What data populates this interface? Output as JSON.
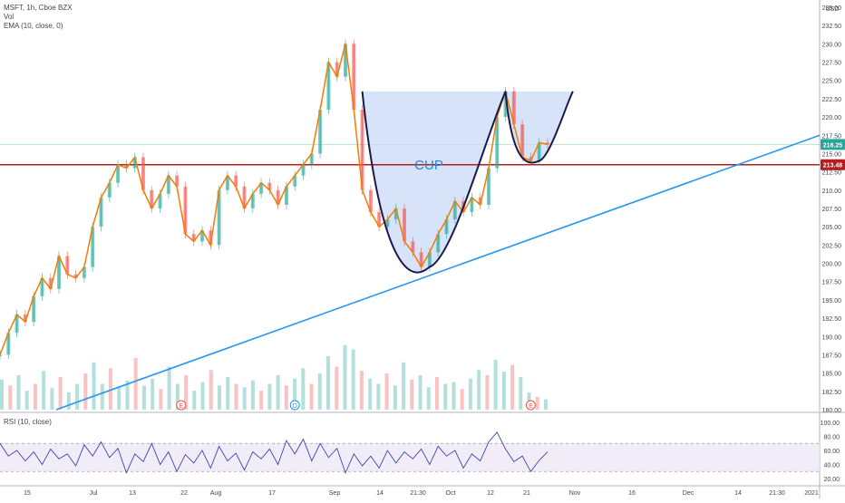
{
  "header": {
    "symbol_line": "MSFT, 1h, Cboe BZX",
    "vol_line": "Vol",
    "ema_line": "EMA (10, close, 0)",
    "rsi_line": "RSI (10, close)"
  },
  "currency_label": "USD",
  "annotations": {
    "cup_label": "CUP"
  },
  "colors": {
    "cup_fill": "#c9daf5",
    "cup_line": "#1a1a4e",
    "trendline": "#2196f3",
    "resistance": "#b71c1c",
    "ema": "#f57c00",
    "up_candle": "#26a69a",
    "down_candle": "#ef5350",
    "rsi_line": "#3949ab",
    "rsi_band": "#ede7f6",
    "price_badge": "#26a69a",
    "level_badge": "#b71c1c"
  },
  "chart_data": {
    "type": "line",
    "title": "",
    "price_axis": {
      "min": 180,
      "max": 235,
      "ticks": [
        "235.00",
        "232.50",
        "230.00",
        "227.50",
        "225.00",
        "222.50",
        "220.00",
        "217.50",
        "215.00",
        "212.50",
        "210.00",
        "207.50",
        "205.00",
        "202.50",
        "200.00",
        "197.50",
        "195.00",
        "192.50",
        "190.00",
        "187.50",
        "185.00",
        "182.50",
        "180.00"
      ]
    },
    "rsi_axis": {
      "min": 20,
      "max": 100,
      "ticks": [
        "100.00",
        "80.00",
        "60.00",
        "40.00",
        "20.00"
      ],
      "band": [
        30,
        70
      ]
    },
    "x_ticks": [
      "15",
      "Jul",
      "13",
      "22",
      "Aug",
      "17",
      "Sep",
      "14",
      "21:30",
      "Oct",
      "12",
      "21",
      "Nov",
      "16",
      "Dec",
      "14",
      "21:30",
      "2021"
    ],
    "price_badges": [
      {
        "label": "216.25",
        "value": 216.25,
        "kind": "last"
      },
      {
        "label": "213.48",
        "value": 213.48,
        "kind": "level"
      }
    ],
    "event_markers": [
      {
        "label": "E",
        "x_index": 21.5
      },
      {
        "label": "D",
        "x_index": 35
      },
      {
        "label": "E",
        "x_index": 63
      }
    ],
    "price_series": [
      {
        "i": 0,
        "v": 187.5
      },
      {
        "i": 1,
        "v": 190.5
      },
      {
        "i": 2,
        "v": 193
      },
      {
        "i": 3,
        "v": 192
      },
      {
        "i": 4,
        "v": 195.5
      },
      {
        "i": 5,
        "v": 198
      },
      {
        "i": 6,
        "v": 196.5
      },
      {
        "i": 7,
        "v": 201
      },
      {
        "i": 8,
        "v": 198.5
      },
      {
        "i": 9,
        "v": 198
      },
      {
        "i": 10,
        "v": 199.5
      },
      {
        "i": 11,
        "v": 205
      },
      {
        "i": 12,
        "v": 209
      },
      {
        "i": 13,
        "v": 211
      },
      {
        "i": 14,
        "v": 213.5
      },
      {
        "i": 15,
        "v": 213
      },
      {
        "i": 16,
        "v": 214.5
      },
      {
        "i": 17,
        "v": 210
      },
      {
        "i": 18,
        "v": 207.5
      },
      {
        "i": 19,
        "v": 209.5
      },
      {
        "i": 20,
        "v": 212
      },
      {
        "i": 21,
        "v": 210.5
      },
      {
        "i": 22,
        "v": 204
      },
      {
        "i": 23,
        "v": 203
      },
      {
        "i": 24,
        "v": 204.5
      },
      {
        "i": 25,
        "v": 202.5
      },
      {
        "i": 26,
        "v": 210
      },
      {
        "i": 27,
        "v": 212
      },
      {
        "i": 28,
        "v": 210.5
      },
      {
        "i": 29,
        "v": 207.5
      },
      {
        "i": 30,
        "v": 209.5
      },
      {
        "i": 31,
        "v": 211
      },
      {
        "i": 32,
        "v": 210
      },
      {
        "i": 33,
        "v": 208
      },
      {
        "i": 34,
        "v": 210.5
      },
      {
        "i": 35,
        "v": 212
      },
      {
        "i": 36,
        "v": 213.5
      },
      {
        "i": 37,
        "v": 215
      },
      {
        "i": 38,
        "v": 221
      },
      {
        "i": 39,
        "v": 227.5
      },
      {
        "i": 40,
        "v": 225.5
      },
      {
        "i": 41,
        "v": 230
      },
      {
        "i": 42,
        "v": 221
      },
      {
        "i": 43,
        "v": 210
      },
      {
        "i": 44,
        "v": 207
      },
      {
        "i": 45,
        "v": 205
      },
      {
        "i": 46,
        "v": 206
      },
      {
        "i": 47,
        "v": 207.5
      },
      {
        "i": 48,
        "v": 203
      },
      {
        "i": 49,
        "v": 201.5
      },
      {
        "i": 50,
        "v": 199.5
      },
      {
        "i": 51,
        "v": 201.5
      },
      {
        "i": 52,
        "v": 204
      },
      {
        "i": 53,
        "v": 206
      },
      {
        "i": 54,
        "v": 208.5
      },
      {
        "i": 55,
        "v": 207
      },
      {
        "i": 56,
        "v": 209
      },
      {
        "i": 57,
        "v": 208
      },
      {
        "i": 58,
        "v": 213
      },
      {
        "i": 59,
        "v": 220
      },
      {
        "i": 60,
        "v": 223.5
      },
      {
        "i": 61,
        "v": 219
      },
      {
        "i": 62,
        "v": 214.5
      },
      {
        "i": 63,
        "v": 214
      },
      {
        "i": 64,
        "v": 216.5
      },
      {
        "i": 65,
        "v": 216.25
      }
    ],
    "rsi_series": [
      {
        "i": 0,
        "v": 70
      },
      {
        "i": 1,
        "v": 52
      },
      {
        "i": 2,
        "v": 60
      },
      {
        "i": 3,
        "v": 45
      },
      {
        "i": 4,
        "v": 58
      },
      {
        "i": 5,
        "v": 40
      },
      {
        "i": 6,
        "v": 62
      },
      {
        "i": 7,
        "v": 48
      },
      {
        "i": 8,
        "v": 55
      },
      {
        "i": 9,
        "v": 38
      },
      {
        "i": 10,
        "v": 68
      },
      {
        "i": 11,
        "v": 52
      },
      {
        "i": 12,
        "v": 72
      },
      {
        "i": 13,
        "v": 50
      },
      {
        "i": 14,
        "v": 63
      },
      {
        "i": 15,
        "v": 28
      },
      {
        "i": 16,
        "v": 55
      },
      {
        "i": 17,
        "v": 44
      },
      {
        "i": 18,
        "v": 70
      },
      {
        "i": 19,
        "v": 40
      },
      {
        "i": 20,
        "v": 58
      },
      {
        "i": 21,
        "v": 30
      },
      {
        "i": 22,
        "v": 54
      },
      {
        "i": 23,
        "v": 42
      },
      {
        "i": 24,
        "v": 60
      },
      {
        "i": 25,
        "v": 35
      },
      {
        "i": 26,
        "v": 66
      },
      {
        "i": 27,
        "v": 45
      },
      {
        "i": 28,
        "v": 56
      },
      {
        "i": 29,
        "v": 32
      },
      {
        "i": 30,
        "v": 58
      },
      {
        "i": 31,
        "v": 48
      },
      {
        "i": 32,
        "v": 62
      },
      {
        "i": 33,
        "v": 40
      },
      {
        "i": 34,
        "v": 74
      },
      {
        "i": 35,
        "v": 55
      },
      {
        "i": 36,
        "v": 76
      },
      {
        "i": 37,
        "v": 45
      },
      {
        "i": 38,
        "v": 70
      },
      {
        "i": 39,
        "v": 50
      },
      {
        "i": 40,
        "v": 63
      },
      {
        "i": 41,
        "v": 28
      },
      {
        "i": 42,
        "v": 55
      },
      {
        "i": 43,
        "v": 38
      },
      {
        "i": 44,
        "v": 52
      },
      {
        "i": 45,
        "v": 35
      },
      {
        "i": 46,
        "v": 60
      },
      {
        "i": 47,
        "v": 42
      },
      {
        "i": 48,
        "v": 58
      },
      {
        "i": 49,
        "v": 48
      },
      {
        "i": 50,
        "v": 62
      },
      {
        "i": 51,
        "v": 40
      },
      {
        "i": 52,
        "v": 66
      },
      {
        "i": 53,
        "v": 52
      },
      {
        "i": 54,
        "v": 60
      },
      {
        "i": 55,
        "v": 35
      },
      {
        "i": 56,
        "v": 55
      },
      {
        "i": 57,
        "v": 45
      },
      {
        "i": 58,
        "v": 72
      },
      {
        "i": 59,
        "v": 86
      },
      {
        "i": 60,
        "v": 62
      },
      {
        "i": 61,
        "v": 44
      },
      {
        "i": 62,
        "v": 52
      },
      {
        "i": 63,
        "v": 30
      },
      {
        "i": 64,
        "v": 46
      },
      {
        "i": 65,
        "v": 58
      }
    ],
    "volume_series": [
      0.35,
      0.28,
      0.4,
      0.22,
      0.3,
      0.45,
      0.25,
      0.38,
      0.2,
      0.3,
      0.42,
      0.55,
      0.3,
      0.48,
      0.26,
      0.34,
      0.6,
      0.28,
      0.36,
      0.24,
      0.5,
      0.3,
      0.4,
      0.22,
      0.32,
      0.46,
      0.28,
      0.38,
      0.3,
      0.26,
      0.34,
      0.22,
      0.3,
      0.4,
      0.28,
      0.36,
      0.48,
      0.3,
      0.42,
      0.62,
      0.5,
      0.75,
      0.7,
      0.45,
      0.36,
      0.3,
      0.42,
      0.28,
      0.55,
      0.35,
      0.4,
      0.26,
      0.38,
      0.3,
      0.32,
      0.24,
      0.36,
      0.46,
      0.4,
      0.58,
      0.44,
      0.52,
      0.38,
      0.2,
      0.15,
      0.12
    ],
    "overlays": {
      "resistance_level": 213.48,
      "last_price_line": 216.25,
      "trendline": {
        "from": {
          "x_index": 3,
          "v": 180
        },
        "to": {
          "x_index": 88,
          "v": 217.5
        }
      },
      "cup": {
        "left": {
          "x_index": 43,
          "v": 223.5
        },
        "bottom": {
          "x_index": 51,
          "v": 199.5
        },
        "right": {
          "x_index": 60,
          "v": 223.5
        }
      },
      "handle": {
        "left": {
          "x_index": 60,
          "v": 223.5
        },
        "bottom": {
          "x_index": 64,
          "v": 214
        },
        "right": {
          "x_index": 68,
          "v": 223.5
        }
      }
    }
  }
}
